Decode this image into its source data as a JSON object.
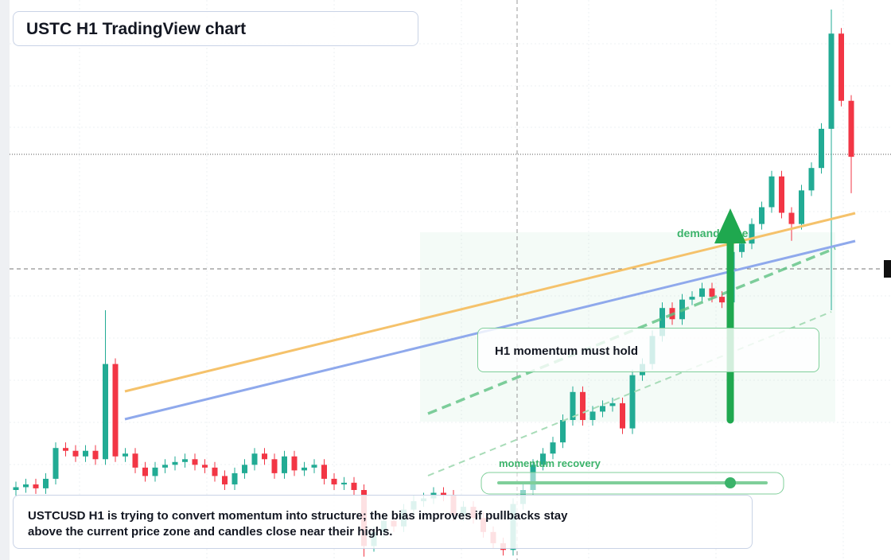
{
  "chart_data": {
    "type": "candlestick",
    "title": "USTC H1 TradingView chart",
    "annotations": {
      "zone": "demand zone",
      "note": "H1 momentum must hold",
      "slider": "momentum recovery"
    },
    "caption": [
      "USTCUSD H1 is trying to convert momentum into structure; the bias improves if pullbacks stay",
      "above the current price zone and candles close near their highs."
    ],
    "up_color": "#22ab94",
    "down_color": "#f23645",
    "ylim": [
      0,
      100
    ],
    "open": [
      12.5,
      13,
      13.5,
      12.8,
      14.5,
      20,
      19.5,
      18.5,
      19.5,
      18,
      35,
      18.5,
      19,
      16.5,
      15,
      16.5,
      17,
      17.5,
      18,
      17,
      16.5,
      15,
      13.5,
      15.5,
      17,
      19,
      18,
      15.5,
      18.5,
      16,
      16.5,
      17,
      14.5,
      13.5,
      13.8,
      12.5,
      2.5,
      5,
      7,
      6,
      9,
      10.5,
      11,
      12,
      11.5,
      8,
      9.5,
      7.5,
      5,
      3,
      1.8,
      10,
      12.5,
      17,
      19,
      21,
      25,
      30,
      25,
      26.5,
      27.5,
      28,
      23.5,
      33,
      35,
      40,
      45,
      43,
      46.5,
      47,
      48.5,
      47,
      46,
      55,
      56.5,
      60,
      63,
      68.5,
      62,
      60,
      66,
      70,
      77,
      94,
      82
    ],
    "high": [
      14,
      14.5,
      14.5,
      15.5,
      21,
      21,
      20.5,
      20.5,
      20.5,
      44.6,
      36,
      20,
      20,
      17.5,
      17.5,
      18,
      18.5,
      19,
      19,
      18,
      17.5,
      16,
      16.5,
      18,
      20,
      20,
      19,
      19.5,
      19.5,
      17.5,
      18,
      18,
      15.5,
      14.8,
      14.8,
      13.5,
      6,
      8,
      8,
      10,
      11.5,
      12,
      13,
      13,
      12.5,
      10.5,
      10.5,
      8.5,
      6,
      4,
      11,
      13.5,
      18,
      20,
      22,
      26,
      31,
      31,
      27.5,
      28.5,
      29,
      29,
      34,
      36,
      41,
      46,
      46,
      47.5,
      48,
      49.5,
      49.5,
      48,
      56,
      57.5,
      61,
      64,
      69.5,
      69.5,
      63,
      67,
      71,
      78,
      98.3,
      95,
      83
    ],
    "low": [
      11.5,
      12,
      11.8,
      11.8,
      13.5,
      18.5,
      17.5,
      17.5,
      17,
      17,
      17.5,
      17.5,
      15.5,
      14,
      14,
      15.5,
      16,
      16.5,
      16,
      15.5,
      14,
      12.5,
      12.5,
      14.5,
      16,
      17,
      14.5,
      14.5,
      15,
      15,
      15.5,
      13.5,
      12.5,
      12.5,
      11.5,
      0.6,
      1.5,
      4,
      5,
      5,
      8,
      9.5,
      10,
      10.5,
      7,
      7,
      6.5,
      4,
      2,
      0.8,
      0.8,
      9,
      11.5,
      16,
      18,
      20,
      24,
      24,
      24,
      25.5,
      26.5,
      22.5,
      22.5,
      32,
      34,
      39,
      42,
      42,
      45.5,
      46,
      46,
      45,
      45,
      54,
      55.5,
      59,
      62,
      61,
      57,
      59,
      65,
      69,
      44.6,
      81,
      65.5
    ],
    "close": [
      13,
      13.5,
      12.8,
      14.5,
      20,
      19.5,
      18.5,
      19.5,
      18,
      35,
      18.5,
      19,
      16.5,
      15,
      16.5,
      17,
      17.5,
      18,
      17,
      16.5,
      15,
      13.5,
      15.5,
      17,
      19,
      18,
      15.5,
      18.5,
      16,
      16.5,
      17,
      14.5,
      13.5,
      13.8,
      12.5,
      2.5,
      5,
      7,
      6,
      9,
      10.5,
      11,
      12,
      11.5,
      8,
      9.5,
      7.5,
      5,
      3,
      1.8,
      10,
      12.5,
      17,
      19,
      21,
      25,
      30,
      25,
      26.5,
      27.5,
      28,
      23.5,
      33,
      35,
      40,
      45,
      43,
      46.5,
      47,
      48.5,
      47,
      46,
      55,
      56.5,
      60,
      63,
      68.5,
      62,
      60,
      66,
      70,
      77,
      94,
      82,
      72
    ]
  }
}
